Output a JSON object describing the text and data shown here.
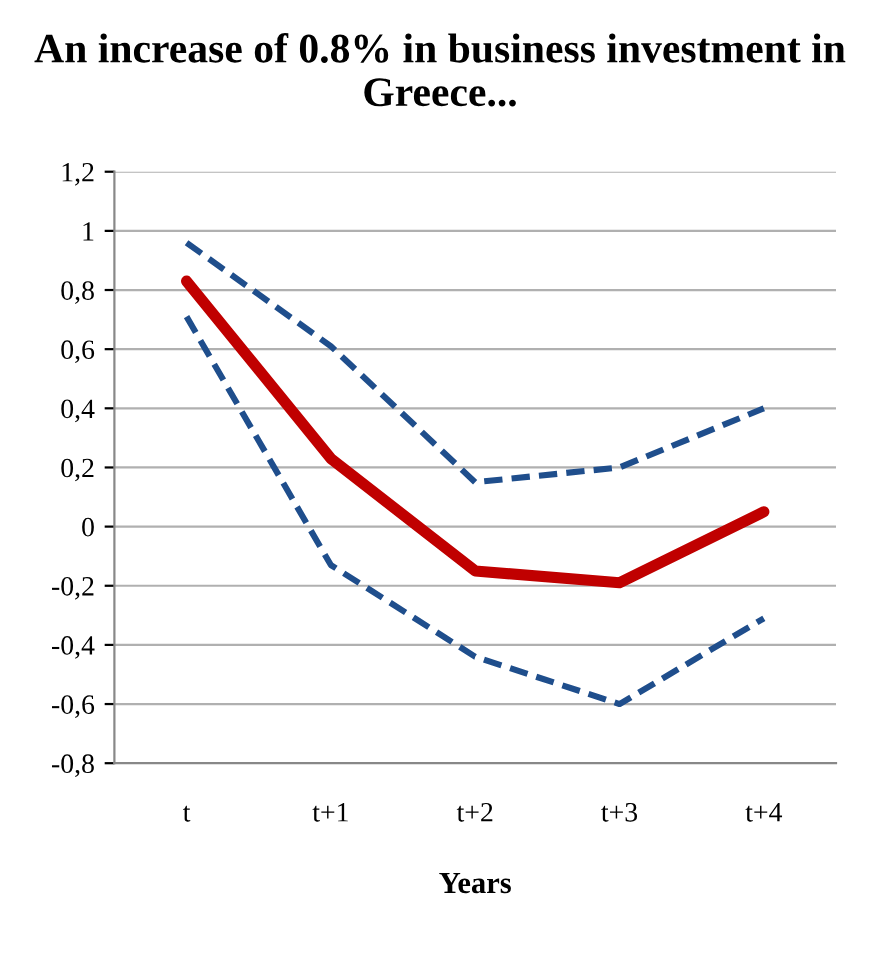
{
  "chart_data": {
    "type": "line",
    "title": "An increase of 0.8% in business investment in Greece...",
    "xlabel": "Years",
    "categories": [
      "t",
      "t+1",
      "t+2",
      "t+3",
      "t+4"
    ],
    "series": [
      {
        "color": "#1f4e8c",
        "line_style": "dashed",
        "values": [
          0.96,
          0.61,
          0.15,
          0.2,
          0.4
        ]
      },
      {
        "color": "#1f4e8c",
        "line_style": "dashed",
        "values": [
          0.71,
          -0.13,
          -0.44,
          -0.6,
          -0.31
        ]
      },
      {
        "color": "#c00000",
        "line_style": "solid",
        "values": [
          0.83,
          0.23,
          -0.15,
          -0.19,
          0.05
        ]
      }
    ],
    "ylim": [
      -0.8,
      1.2
    ],
    "yticks": [
      {
        "value": -0.8,
        "label": "-0,8"
      },
      {
        "value": -0.6,
        "label": "-0,6"
      },
      {
        "value": -0.4,
        "label": "-0,4"
      },
      {
        "value": -0.2,
        "label": "-0,2"
      },
      0,
      {
        "value": 0.2,
        "label": "0,2"
      },
      {
        "value": 0.4,
        "label": "0,4"
      },
      {
        "value": 0.6,
        "label": "0,6"
      },
      {
        "value": 0.8,
        "label": "0,8"
      },
      1,
      {
        "value": 1.2,
        "label": "1,2"
      }
    ],
    "grid": "y",
    "marker": "none"
  }
}
